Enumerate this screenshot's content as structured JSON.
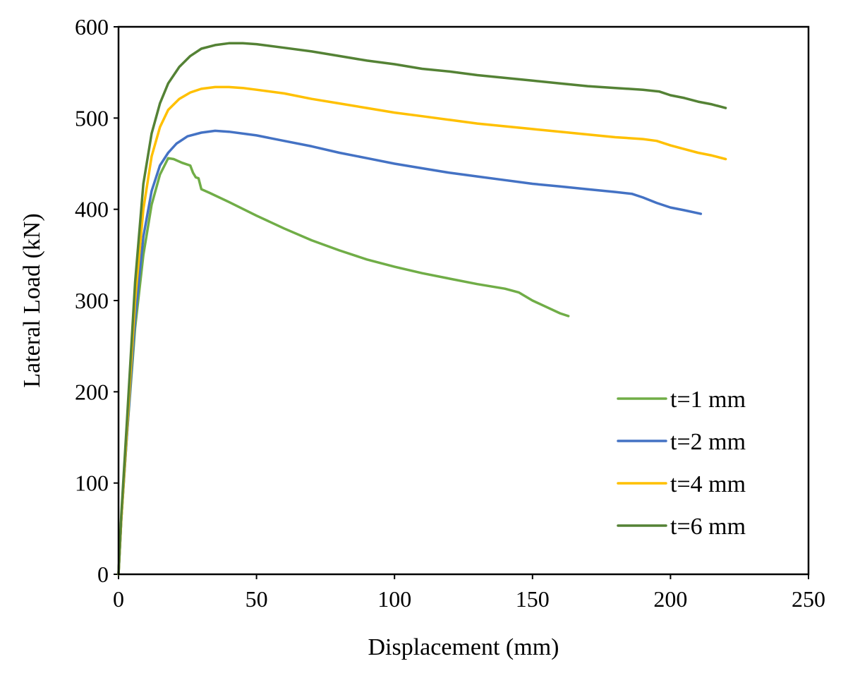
{
  "chart_data": {
    "type": "line",
    "title": "",
    "xlabel": "Displacement (mm)",
    "ylabel": "Lateral Load (kN)",
    "xlim": [
      0,
      250
    ],
    "ylim": [
      0,
      600
    ],
    "xticks": [
      0,
      50,
      100,
      150,
      200,
      250
    ],
    "yticks": [
      0,
      100,
      200,
      300,
      400,
      500,
      600
    ],
    "grid": false,
    "legend_position": "bottom-right",
    "series": [
      {
        "name": "t=1 mm",
        "color": "#70AD47",
        "points": [
          [
            0,
            0
          ],
          [
            1,
            60
          ],
          [
            3,
            150
          ],
          [
            6,
            270
          ],
          [
            9,
            350
          ],
          [
            12,
            405
          ],
          [
            15,
            438
          ],
          [
            17,
            450
          ],
          [
            18,
            456
          ],
          [
            20,
            455
          ],
          [
            23,
            451
          ],
          [
            26,
            448
          ],
          [
            27,
            440
          ],
          [
            28,
            435
          ],
          [
            29,
            434
          ],
          [
            30,
            422
          ],
          [
            33,
            418
          ],
          [
            40,
            408
          ],
          [
            50,
            393
          ],
          [
            60,
            379
          ],
          [
            70,
            366
          ],
          [
            80,
            355
          ],
          [
            90,
            345
          ],
          [
            100,
            337
          ],
          [
            110,
            330
          ],
          [
            120,
            324
          ],
          [
            130,
            318
          ],
          [
            140,
            313
          ],
          [
            145,
            309
          ],
          [
            150,
            300
          ],
          [
            155,
            293
          ],
          [
            160,
            286
          ],
          [
            163,
            283
          ]
        ]
      },
      {
        "name": "t=2 mm",
        "color": "#4472C4",
        "points": [
          [
            0,
            0
          ],
          [
            1,
            60
          ],
          [
            3,
            150
          ],
          [
            6,
            280
          ],
          [
            9,
            370
          ],
          [
            12,
            420
          ],
          [
            15,
            448
          ],
          [
            18,
            462
          ],
          [
            21,
            472
          ],
          [
            25,
            480
          ],
          [
            30,
            484
          ],
          [
            35,
            486
          ],
          [
            40,
            485
          ],
          [
            50,
            481
          ],
          [
            60,
            475
          ],
          [
            70,
            469
          ],
          [
            80,
            462
          ],
          [
            90,
            456
          ],
          [
            100,
            450
          ],
          [
            110,
            445
          ],
          [
            120,
            440
          ],
          [
            130,
            436
          ],
          [
            140,
            432
          ],
          [
            150,
            428
          ],
          [
            160,
            425
          ],
          [
            170,
            422
          ],
          [
            180,
            419
          ],
          [
            186,
            417
          ],
          [
            190,
            413
          ],
          [
            195,
            407
          ],
          [
            200,
            402
          ],
          [
            205,
            399
          ],
          [
            211,
            395
          ]
        ]
      },
      {
        "name": "t=4 mm",
        "color": "#FFC000",
        "points": [
          [
            0,
            0
          ],
          [
            1,
            60
          ],
          [
            3,
            155
          ],
          [
            6,
            300
          ],
          [
            9,
            400
          ],
          [
            12,
            458
          ],
          [
            15,
            490
          ],
          [
            18,
            509
          ],
          [
            22,
            521
          ],
          [
            26,
            528
          ],
          [
            30,
            532
          ],
          [
            35,
            534
          ],
          [
            40,
            534
          ],
          [
            45,
            533
          ],
          [
            50,
            531
          ],
          [
            60,
            527
          ],
          [
            70,
            521
          ],
          [
            80,
            516
          ],
          [
            90,
            511
          ],
          [
            100,
            506
          ],
          [
            110,
            502
          ],
          [
            120,
            498
          ],
          [
            130,
            494
          ],
          [
            140,
            491
          ],
          [
            150,
            488
          ],
          [
            160,
            485
          ],
          [
            170,
            482
          ],
          [
            180,
            479
          ],
          [
            190,
            477
          ],
          [
            195,
            475
          ],
          [
            200,
            470
          ],
          [
            205,
            466
          ],
          [
            210,
            462
          ],
          [
            215,
            459
          ],
          [
            220,
            455
          ]
        ]
      },
      {
        "name": "t=6 mm",
        "color": "#548235",
        "points": [
          [
            0,
            0
          ],
          [
            1,
            65
          ],
          [
            3,
            165
          ],
          [
            6,
            320
          ],
          [
            9,
            428
          ],
          [
            12,
            483
          ],
          [
            15,
            516
          ],
          [
            18,
            538
          ],
          [
            22,
            556
          ],
          [
            26,
            568
          ],
          [
            30,
            576
          ],
          [
            35,
            580
          ],
          [
            40,
            582
          ],
          [
            45,
            582
          ],
          [
            50,
            581
          ],
          [
            60,
            577
          ],
          [
            70,
            573
          ],
          [
            80,
            568
          ],
          [
            90,
            563
          ],
          [
            100,
            559
          ],
          [
            110,
            554
          ],
          [
            120,
            551
          ],
          [
            130,
            547
          ],
          [
            140,
            544
          ],
          [
            150,
            541
          ],
          [
            160,
            538
          ],
          [
            170,
            535
          ],
          [
            180,
            533
          ],
          [
            190,
            531
          ],
          [
            196,
            529
          ],
          [
            200,
            525
          ],
          [
            205,
            522
          ],
          [
            210,
            518
          ],
          [
            215,
            515
          ],
          [
            220,
            511
          ]
        ]
      }
    ]
  }
}
